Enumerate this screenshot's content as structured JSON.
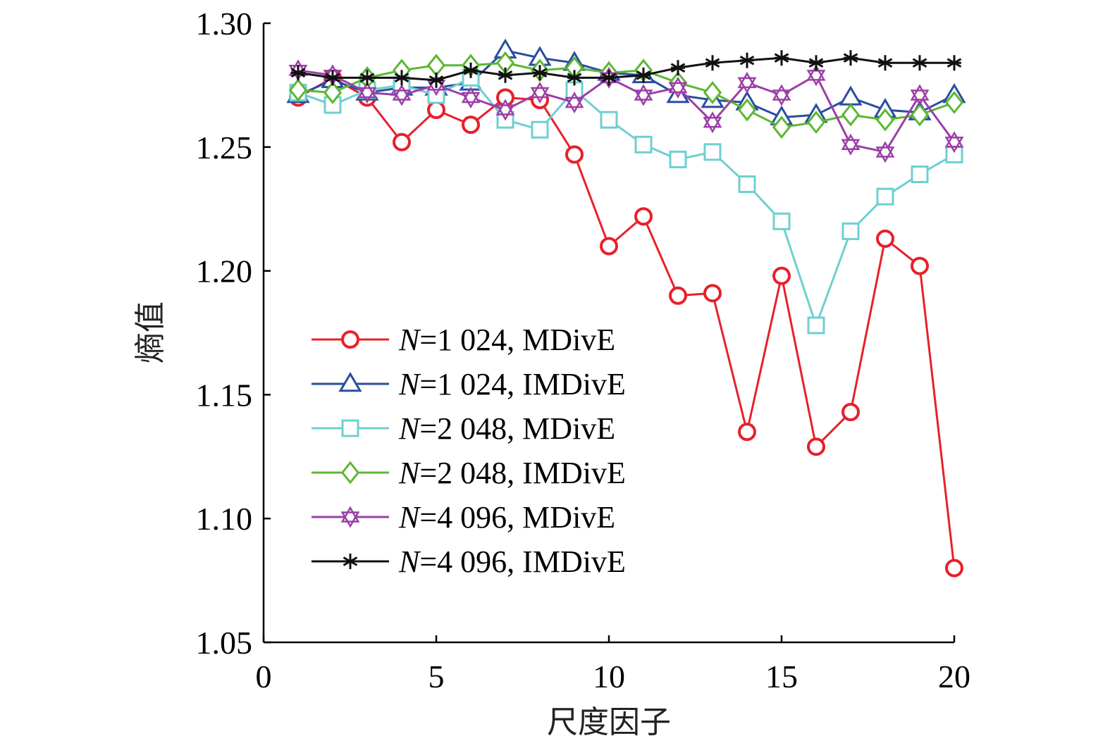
{
  "chart_data": {
    "type": "line",
    "title": "",
    "xlabel": "尺度因子",
    "ylabel": "熵值",
    "xlim": [
      0,
      20
    ],
    "ylim": [
      1.05,
      1.3
    ],
    "xticks": [
      "0",
      "5",
      "10",
      "15",
      "20"
    ],
    "yticks": [
      "1.05",
      "1.10",
      "1.15",
      "1.20",
      "1.25",
      "1.30"
    ],
    "xtick_values": [
      0,
      5,
      10,
      15,
      20
    ],
    "ytick_values": [
      1.05,
      1.1,
      1.15,
      1.2,
      1.25,
      1.3
    ],
    "legend_position": "center-left",
    "x": [
      1,
      2,
      3,
      4,
      5,
      6,
      7,
      8,
      9,
      10,
      11,
      12,
      13,
      14,
      15,
      16,
      17,
      18,
      19,
      20
    ],
    "series": [
      {
        "name_var": "N",
        "name_rest": "=1 024, MDivE",
        "color": "#e8202a",
        "marker": "circle",
        "values": [
          1.27,
          1.278,
          1.27,
          1.252,
          1.265,
          1.259,
          1.27,
          1.269,
          1.247,
          1.21,
          1.222,
          1.19,
          1.191,
          1.135,
          1.198,
          1.129,
          1.143,
          1.213,
          1.202,
          1.08
        ]
      },
      {
        "name_var": "N",
        "name_rest": "=1 024, IMDivE",
        "color": "#2a4ea0",
        "marker": "triangle",
        "values": [
          1.271,
          1.277,
          1.272,
          1.274,
          1.274,
          1.276,
          1.289,
          1.286,
          1.284,
          1.28,
          1.279,
          1.271,
          1.269,
          1.268,
          1.262,
          1.263,
          1.27,
          1.265,
          1.264,
          1.271
        ]
      },
      {
        "name_var": "N",
        "name_rest": "=2 048, MDivE",
        "color": "#6fcfd0",
        "marker": "square",
        "values": [
          1.272,
          1.267,
          1.273,
          1.275,
          1.271,
          1.278,
          1.261,
          1.257,
          1.273,
          1.261,
          1.251,
          1.245,
          1.248,
          1.235,
          1.22,
          1.178,
          1.216,
          1.23,
          1.239,
          1.247
        ]
      },
      {
        "name_var": "N",
        "name_rest": "=2 048, IMDivE",
        "color": "#5bb832",
        "marker": "diamond",
        "values": [
          1.273,
          1.272,
          1.278,
          1.281,
          1.283,
          1.283,
          1.284,
          1.281,
          1.282,
          1.28,
          1.281,
          1.276,
          1.272,
          1.265,
          1.258,
          1.26,
          1.263,
          1.261,
          1.263,
          1.268
        ]
      },
      {
        "name_var": "N",
        "name_rest": "=4 096, MDivE",
        "color": "#9b3fa6",
        "marker": "star6",
        "values": [
          1.281,
          1.279,
          1.272,
          1.271,
          1.275,
          1.27,
          1.265,
          1.272,
          1.268,
          1.278,
          1.271,
          1.274,
          1.26,
          1.276,
          1.271,
          1.279,
          1.251,
          1.248,
          1.271,
          1.252
        ]
      },
      {
        "name_var": "N",
        "name_rest": "=4 096, IMDivE",
        "color": "#111111",
        "marker": "asterisk",
        "values": [
          1.28,
          1.278,
          1.278,
          1.278,
          1.277,
          1.281,
          1.279,
          1.28,
          1.278,
          1.278,
          1.279,
          1.282,
          1.284,
          1.285,
          1.286,
          1.284,
          1.286,
          1.284,
          1.284,
          1.284
        ]
      }
    ]
  }
}
